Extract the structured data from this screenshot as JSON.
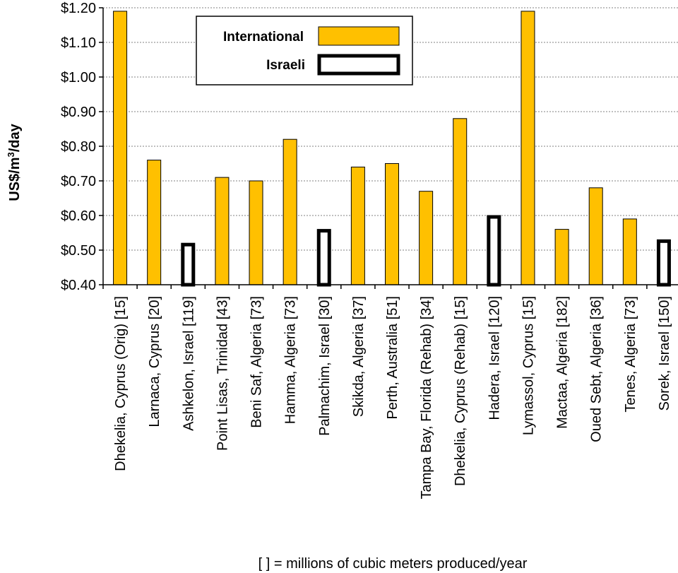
{
  "chart_data": {
    "type": "bar",
    "categories": [
      "Dhekelia, Cyprus (Orig) [15]",
      "Larnaca, Cyprus [20]",
      "Ashkelon, Israel [119]",
      "Point Lisas, Trinidad [43]",
      "Beni Saf, Algeria [73]",
      "Hamma, Algeria [73]",
      "Palmachim, Israel [30]",
      "Skikda, Algeria [37]",
      "Perth, Australia [51]",
      "Tampa Bay, Florida (Rehab) [34]",
      "Dhekelia, Cyprus (Rehab) [15]",
      "Hadera, Israel [120]",
      "Lymassol, Cyprus [15]",
      "Mactaa, Algeria [182]",
      "Oued Sebt, Algeria [36]",
      "Tenes, Algeria [73]",
      "Sorek, Israel [150]"
    ],
    "values": [
      1.19,
      0.76,
      0.52,
      0.71,
      0.7,
      0.82,
      0.56,
      0.74,
      0.75,
      0.67,
      0.88,
      0.6,
      1.19,
      0.56,
      0.68,
      0.59,
      0.53
    ],
    "groups": [
      "International",
      "International",
      "Israeli",
      "International",
      "International",
      "International",
      "Israeli",
      "International",
      "International",
      "International",
      "International",
      "Israeli",
      "International",
      "International",
      "International",
      "International",
      "Israeli"
    ],
    "series": [
      {
        "name": "International",
        "color": "#FFC000"
      },
      {
        "name": "Israeli",
        "color": "#FFFFFF"
      }
    ],
    "ylabel_main": "US$/m",
    "ylabel_sup": "3",
    "ylabel_tail": "/day",
    "xlabel": "[ ] = millions of cubic meters produced/year",
    "ylim": [
      0.4,
      1.2
    ],
    "yticks": [
      "$0.40",
      "$0.50",
      "$0.60",
      "$0.70",
      "$0.80",
      "$0.90",
      "$1.00",
      "$1.10",
      "$1.20"
    ],
    "ytick_values": [
      0.4,
      0.5,
      0.6,
      0.7,
      0.8,
      0.9,
      1.0,
      1.1,
      1.2
    ],
    "grid": true,
    "legend_position": "top-left"
  }
}
